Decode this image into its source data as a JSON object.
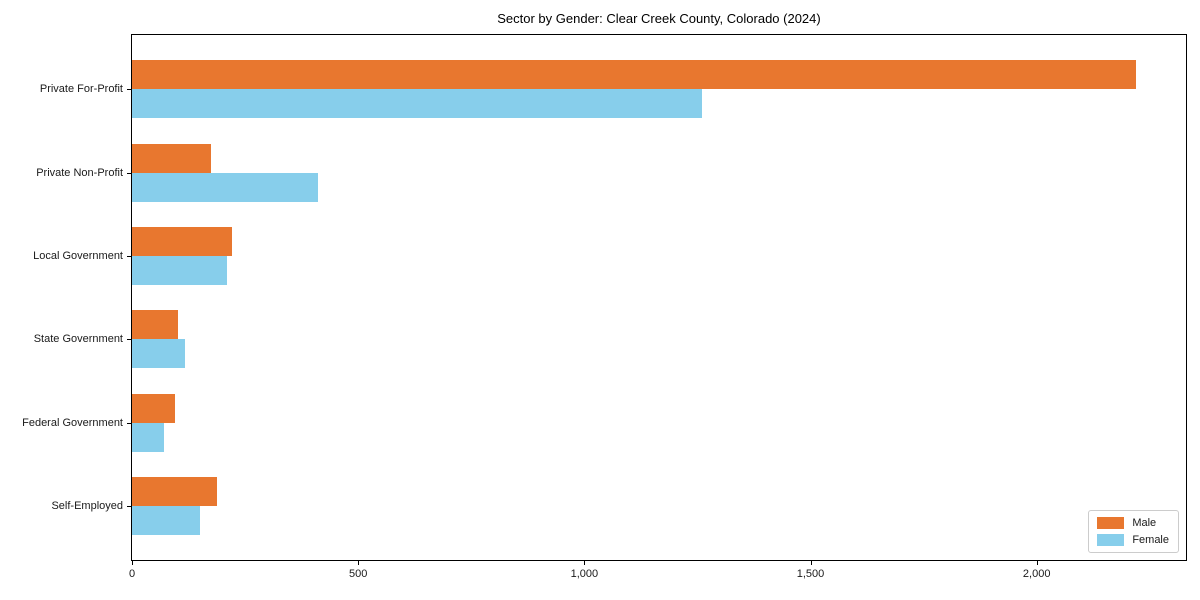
{
  "page": {
    "background": "#ffffff",
    "spine_color": "#000000",
    "text_color": "#1a1a1a"
  },
  "chart_data": {
    "type": "bar",
    "orientation": "horizontal",
    "title": "Sector by Gender: Clear Creek County, Colorado (2024)",
    "xlabel": "",
    "ylabel": "",
    "categories": [
      "Private For-Profit",
      "Private Non-Profit",
      "Local Government",
      "State Government",
      "Federal Government",
      "Self-Employed"
    ],
    "series": [
      {
        "name": "Male",
        "color": "#e8772f",
        "values": [
          2220,
          175,
          220,
          102,
          95,
          188
        ]
      },
      {
        "name": "Female",
        "color": "#87ceeb",
        "values": [
          1260,
          410,
          210,
          118,
          71,
          150
        ]
      }
    ],
    "xlim": [
      0,
      2330
    ],
    "xticks": {
      "values": [
        0,
        500,
        1000,
        1500,
        2000
      ],
      "labels": [
        "0",
        "500",
        "1,000",
        "1,500",
        "2,000"
      ]
    },
    "grid": false,
    "legend": {
      "position": "lower right",
      "entries": [
        "Male",
        "Female"
      ]
    }
  }
}
